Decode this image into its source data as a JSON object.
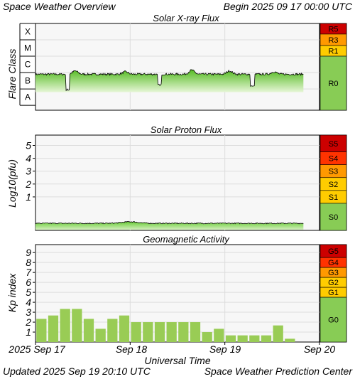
{
  "header": {
    "title": "Space Weather Overview",
    "begin": "Begin 2025 09 17 00:00 UTC"
  },
  "footer": {
    "updated": "Updated 2025 Sep 19 20:10 UTC",
    "credit": "Space Weather Prediction Center"
  },
  "colors": {
    "line": "#000000",
    "fill_green": "#66cc33",
    "fill_light": "#c8eaa8",
    "bar_green": "#99cc55",
    "grid": "#dddddd",
    "scale_green": "#88cc55",
    "scale_yellow": "#ffcc00",
    "scale_orange": "#ff9900",
    "scale_redorange": "#ff3300",
    "scale_red": "#cc0000"
  },
  "chart_data": [
    {
      "type": "line",
      "title": "Solar X-ray Flux",
      "ylabel": "Flare Class",
      "y_categories": [
        "A",
        "B",
        "C",
        "M",
        "X"
      ],
      "ylim_log_wm2": [
        -8.3,
        -3.0
      ],
      "x_range_days": [
        0,
        3
      ],
      "x_end_data_day": 2.83,
      "baseline_log": -6.1,
      "dips": [
        {
          "day": 0.34,
          "min_log": -7.1
        },
        {
          "day": 1.31,
          "min_log": -6.8
        },
        {
          "day": 2.29,
          "min_log": -6.9
        }
      ],
      "bumps": [
        {
          "day": 0.42,
          "log": -5.9
        },
        {
          "day": 0.95,
          "log": -5.95
        },
        {
          "day": 1.65,
          "log": -5.85
        },
        {
          "day": 2.05,
          "log": -5.9
        },
        {
          "day": 2.52,
          "log": -5.95
        }
      ],
      "scale": [
        {
          "label": "R5",
          "color": "#cc0000"
        },
        {
          "label": "R3",
          "color": "#ff9900"
        },
        {
          "label": "R1",
          "color": "#ffcc00"
        },
        {
          "label": "R0",
          "color": "#88cc55"
        }
      ]
    },
    {
      "type": "line",
      "title": "Solar Proton Flux",
      "ylabel": "Log10(pfu)",
      "y_ticks": [
        "1",
        "2",
        "3",
        "4",
        "5"
      ],
      "ylim": [
        -1.6,
        5.8
      ],
      "x_range_days": [
        0,
        3
      ],
      "x_end_data_day": 2.83,
      "baseline": -1.05,
      "scale": [
        {
          "label": "S5",
          "color": "#cc0000"
        },
        {
          "label": "S4",
          "color": "#ff3300"
        },
        {
          "label": "S3",
          "color": "#ff9900"
        },
        {
          "label": "S2",
          "color": "#ffcc00"
        },
        {
          "label": "S1",
          "color": "#ffcc00"
        },
        {
          "label": "S0",
          "color": "#88cc55"
        }
      ]
    },
    {
      "type": "bar",
      "title": "Geomagnetic Activity",
      "ylabel": "Kp index",
      "y_ticks": [
        "1",
        "2",
        "3",
        "4",
        "5",
        "6",
        "7",
        "8",
        "9"
      ],
      "ylim": [
        0,
        9.8
      ],
      "x_range_days": [
        0,
        3
      ],
      "values": [
        2.33,
        2.67,
        3.33,
        3.33,
        2.33,
        1.33,
        2.33,
        2.67,
        2.0,
        2.0,
        2.0,
        2.0,
        2.0,
        2.0,
        1.0,
        1.33,
        0.67,
        0.67,
        0.67,
        0.67,
        1.67,
        0.33
      ],
      "scale": [
        {
          "label": "G5",
          "color": "#cc0000"
        },
        {
          "label": "G4",
          "color": "#ff3300"
        },
        {
          "label": "G3",
          "color": "#ff9900"
        },
        {
          "label": "G2",
          "color": "#ffcc00"
        },
        {
          "label": "G1",
          "color": "#ffcc00"
        },
        {
          "label": "G0",
          "color": "#88cc55"
        }
      ]
    }
  ],
  "x_axis": {
    "labels": [
      "2025 Sep 17",
      "Sep 18",
      "Sep 19",
      "Sep 20"
    ],
    "xlabel": "Universal Time"
  }
}
